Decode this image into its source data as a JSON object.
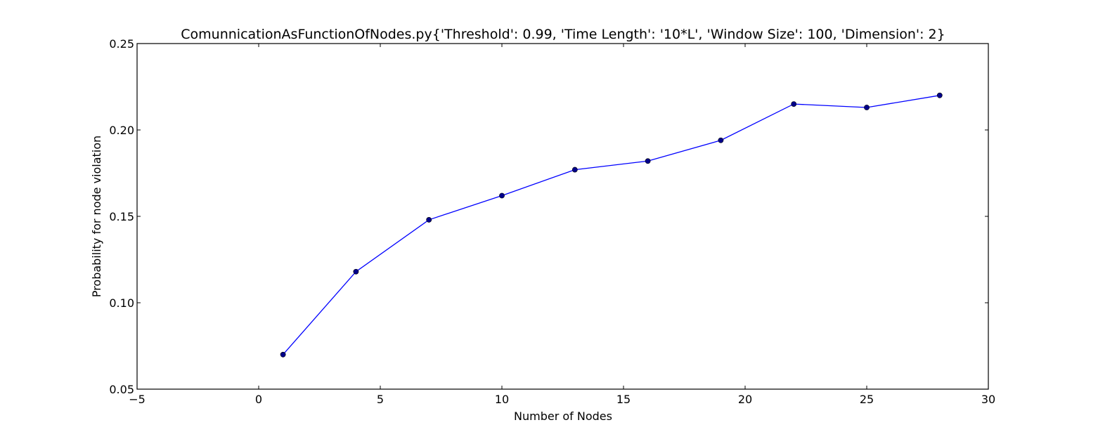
{
  "chart_data": {
    "type": "line",
    "title": "ComunnicationAsFunctionOfNodes.py{'Threshold': 0.99, 'Time Length': '10*L', 'Window Size': 100, 'Dimension': 2}",
    "xlabel": "Number of Nodes",
    "ylabel": "Probability for node violation",
    "xlim": [
      -5,
      30
    ],
    "ylim": [
      0.05,
      0.25
    ],
    "x_ticks": [
      "−5",
      "0",
      "5",
      "10",
      "15",
      "20",
      "25",
      "30"
    ],
    "y_ticks": [
      "0.05",
      "0.10",
      "0.15",
      "0.20",
      "0.25"
    ],
    "grid": false,
    "series": [
      {
        "color": "#0000ff",
        "marker_color": "#00008b",
        "x": [
          1,
          4,
          7,
          10,
          13,
          16,
          19,
          22,
          25,
          28
        ],
        "y": [
          0.07,
          0.118,
          0.148,
          0.162,
          0.177,
          0.182,
          0.194,
          0.215,
          0.213,
          0.22
        ]
      }
    ]
  }
}
